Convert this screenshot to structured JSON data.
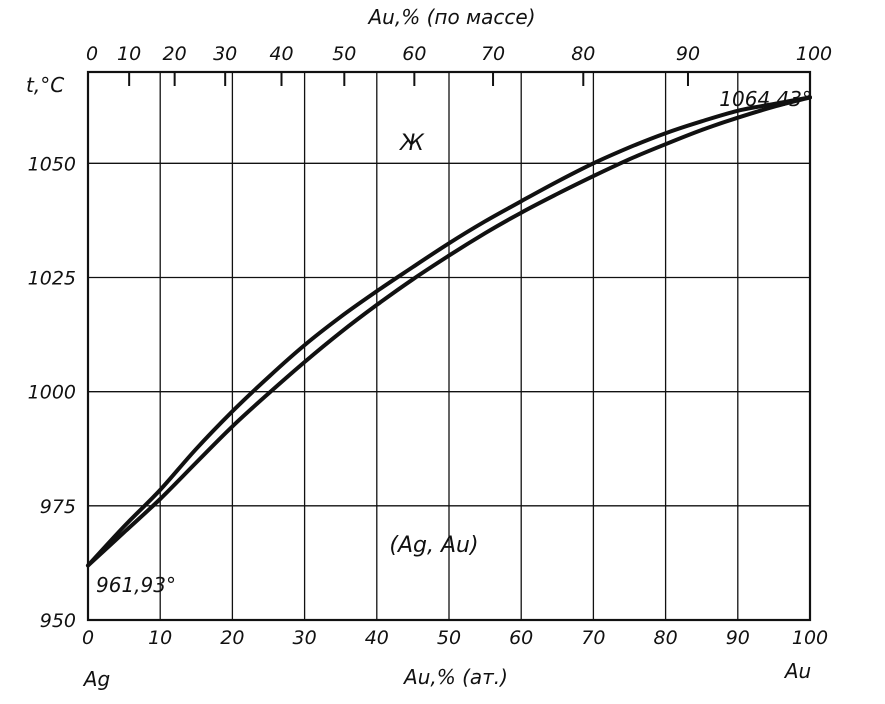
{
  "chart_data": {
    "type": "line",
    "title": "",
    "x_axis_bottom": {
      "label": "Au,% (ат.)",
      "range": [
        0,
        100
      ],
      "ticks": [
        0,
        10,
        20,
        30,
        40,
        50,
        60,
        70,
        80,
        90,
        100
      ],
      "tick_labels": [
        "0",
        "10",
        "20",
        "30",
        "40",
        "50",
        "60",
        "70",
        "80",
        "90",
        "100"
      ],
      "left_end_label": "Ag",
      "right_end_label": "Au"
    },
    "x_axis_top": {
      "label": "Au,% (по массе)",
      "ticks": [
        0,
        10,
        20,
        30,
        40,
        50,
        60,
        70,
        80,
        90,
        100
      ],
      "tick_labels": [
        "0",
        "10",
        "20",
        "30",
        "40",
        "50",
        "60",
        "70",
        "80",
        "90",
        "100"
      ],
      "positions_at_percent": [
        0,
        5.7,
        12.0,
        19.0,
        26.8,
        35.5,
        45.2,
        56.1,
        68.6,
        83.1,
        100
      ]
    },
    "y_axis": {
      "label": "t,°C",
      "range": [
        950,
        1070
      ],
      "ticks": [
        950,
        975,
        1000,
        1025,
        1050
      ],
      "tick_labels": [
        "950",
        "975",
        "1000",
        "1025",
        "1050"
      ]
    },
    "grid": true,
    "series": [
      {
        "x": [
          0,
          5,
          10,
          15,
          20,
          25,
          30,
          35,
          40,
          45,
          50,
          55,
          60,
          65,
          70,
          75,
          80,
          85,
          90,
          95,
          100
        ],
        "y": [
          961.93,
          970.5,
          978.5,
          987.5,
          995.7,
          1003.2,
          1010.2,
          1016.4,
          1022.0,
          1027.3,
          1032.5,
          1037.3,
          1041.7,
          1046.0,
          1050.0,
          1053.5,
          1056.6,
          1059.2,
          1061.5,
          1063.0,
          1064.43
        ]
      },
      {
        "x": [
          0,
          5,
          10,
          15,
          20,
          25,
          30,
          35,
          40,
          45,
          50,
          55,
          60,
          65,
          70,
          75,
          80,
          85,
          90,
          95,
          100
        ],
        "y": [
          961.93,
          969.2,
          976.5,
          984.5,
          992.4,
          999.6,
          1006.5,
          1013.0,
          1019.0,
          1024.6,
          1029.8,
          1034.7,
          1039.2,
          1043.3,
          1047.2,
          1050.9,
          1054.2,
          1057.3,
          1060.0,
          1062.4,
          1064.43
        ]
      }
    ],
    "annotations": [
      {
        "text": "961,93°",
        "x": 0,
        "y": 961.93
      },
      {
        "text": "1064,43°",
        "x": 100,
        "y": 1064.43
      }
    ],
    "phase_labels": [
      {
        "text": "Ж",
        "x": 45,
        "y": 1058
      },
      {
        "text": "(Ag, Au)",
        "x": 48,
        "y": 963
      }
    ]
  }
}
